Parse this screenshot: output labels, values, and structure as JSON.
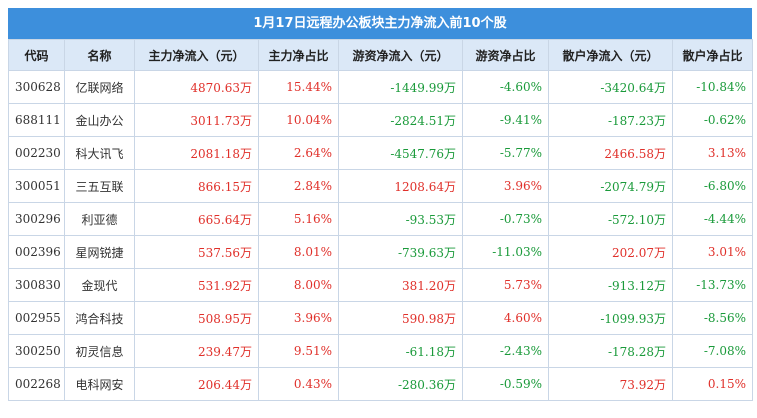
{
  "title": "1月17日远程办公板块主力净流入前10个股",
  "table": {
    "header": [
      "代码",
      "名称",
      "主力净流入（元）",
      "主力净占比",
      "游资净流入（元）",
      "游资净占比",
      "散户净流入（元）",
      "散户净占比"
    ],
    "rows": [
      [
        "300628",
        "亿联网络",
        "4870.63万",
        "15.44%",
        "-1449.99万",
        "-4.60%",
        "-3420.64万",
        "-10.84%"
      ],
      [
        "688111",
        "金山办公",
        "3011.73万",
        "10.04%",
        "-2824.51万",
        "-9.41%",
        "-187.23万",
        "-0.62%"
      ],
      [
        "002230",
        "科大讯飞",
        "2081.18万",
        "2.64%",
        "-4547.76万",
        "-5.77%",
        "2466.58万",
        "3.13%"
      ],
      [
        "300051",
        "三五互联",
        "866.15万",
        "2.84%",
        "1208.64万",
        "3.96%",
        "-2074.79万",
        "-6.80%"
      ],
      [
        "300296",
        "利亚德",
        "665.64万",
        "5.16%",
        "-93.53万",
        "-0.73%",
        "-572.10万",
        "-4.44%"
      ],
      [
        "002396",
        "星网锐捷",
        "537.56万",
        "8.01%",
        "-739.63万",
        "-11.03%",
        "202.07万",
        "3.01%"
      ],
      [
        "300830",
        "金现代",
        "531.92万",
        "8.00%",
        "381.20万",
        "5.73%",
        "-913.12万",
        "-13.73%"
      ],
      [
        "002955",
        "鸿合科技",
        "508.95万",
        "3.96%",
        "590.98万",
        "4.60%",
        "-1099.93万",
        "-8.56%"
      ],
      [
        "300250",
        "初灵信息",
        "239.47万",
        "9.51%",
        "-61.18万",
        "-2.43%",
        "-178.28万",
        "-7.08%"
      ],
      [
        "002268",
        "电科网安",
        "206.44万",
        "0.43%",
        "-280.36万",
        "-0.59%",
        "73.92万",
        "0.15%"
      ]
    ]
  }
}
